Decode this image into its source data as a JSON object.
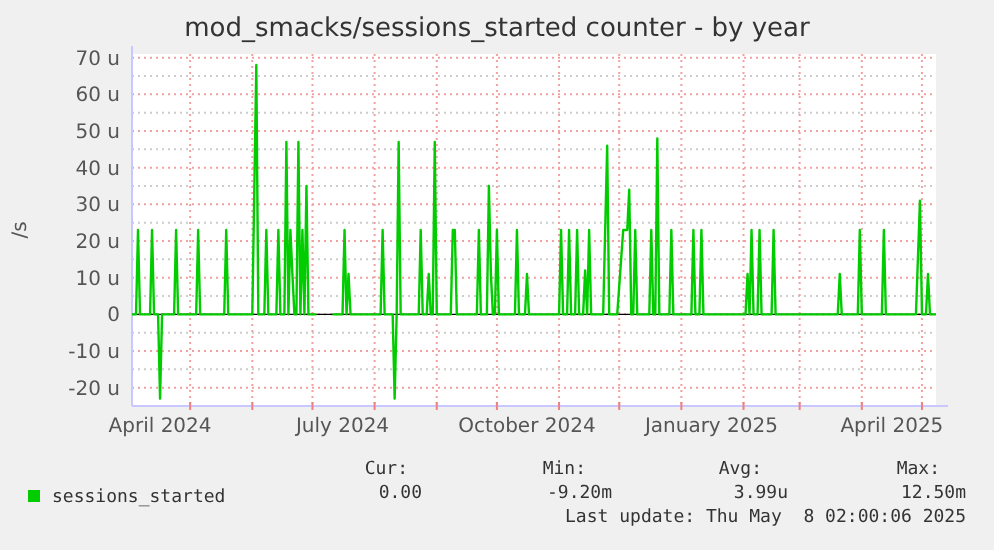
{
  "chart_data": {
    "type": "line",
    "title": "mod_smacks/sessions_started counter - by year",
    "ylabel": "/s",
    "xlim": [
      "2024-04-02",
      "2025-05-08"
    ],
    "xticks": [
      {
        "value": "2024-05-01",
        "label": null
      },
      {
        "value": "2024-06-01",
        "label": null
      },
      {
        "value": "2024-07-01",
        "label": null
      },
      {
        "value": "2024-08-01",
        "label": null
      },
      {
        "value": "2024-09-01",
        "label": null
      },
      {
        "value": "2024-10-01",
        "label": null
      },
      {
        "value": "2024-11-01",
        "label": null
      },
      {
        "value": "2024-12-01",
        "label": null
      },
      {
        "value": "2025-01-01",
        "label": null
      },
      {
        "value": "2025-02-01",
        "label": null
      },
      {
        "value": "2025-03-01",
        "label": null
      },
      {
        "value": "2025-04-01",
        "label": null
      },
      {
        "value": "2025-05-01",
        "label": null
      },
      {
        "value": "2024-04-16",
        "label": "April 2024"
      },
      {
        "value": "2024-07-16",
        "label": "July 2024"
      },
      {
        "value": "2024-10-16",
        "label": "October 2024"
      },
      {
        "value": "2025-01-16",
        "label": "January 2025"
      },
      {
        "value": "2025-04-16",
        "label": "April 2025"
      }
    ],
    "ylim": [
      -25,
      71
    ],
    "yticks": [
      {
        "value": -20,
        "label": "-20 u"
      },
      {
        "value": -10,
        "label": "-10 u"
      },
      0,
      {
        "value": 10,
        "label": "10 u"
      },
      {
        "value": 20,
        "label": "20 u"
      },
      {
        "value": 30,
        "label": "30 u"
      },
      {
        "value": 40,
        "label": "40 u"
      },
      {
        "value": 50,
        "label": "50 u"
      },
      {
        "value": 60,
        "label": "60 u"
      },
      {
        "value": 70,
        "label": "70 u"
      },
      {
        "value": -15,
        "label": null
      },
      {
        "value": -5,
        "label": null
      },
      {
        "value": 5,
        "label": null
      },
      {
        "value": 15,
        "label": null
      },
      {
        "value": 25,
        "label": null
      },
      {
        "value": 35,
        "label": null
      },
      {
        "value": 45,
        "label": null
      },
      {
        "value": 55,
        "label": null
      },
      {
        "value": 65,
        "label": null
      }
    ],
    "grid": true,
    "legend": "bottom",
    "series": [
      {
        "name": "sessions_started",
        "color": "#00cc00",
        "x": [
          "2024-04-02",
          "2024-04-04",
          "2024-04-05",
          "2024-04-06",
          "2024-04-11",
          "2024-04-12",
          "2024-04-13",
          "2024-04-15",
          "2024-04-16",
          "2024-04-17",
          "2024-04-23",
          "2024-04-24",
          "2024-04-25",
          "2024-05-04",
          "2024-05-05",
          "2024-05-06",
          "2024-05-18",
          "2024-05-19",
          "2024-05-20",
          "2024-06-01",
          "2024-06-03",
          "2024-06-04",
          "2024-06-07",
          "2024-06-08",
          "2024-06-09",
          "2024-06-13",
          "2024-06-14",
          "2024-06-15",
          "2024-06-17",
          "2024-06-18",
          "2024-06-19",
          "2024-06-20",
          "2024-06-21",
          "2024-06-22",
          "2024-06-23",
          "2024-06-24",
          "2024-06-25",
          "2024-06-26",
          "2024-06-27",
          "2024-06-28",
          "2024-06-29",
          "2024-07-03",
          "2024-07-07",
          "2024-07-11",
          "2024-07-16",
          "2024-07-17",
          "2024-07-18",
          "2024-07-19",
          "2024-07-20",
          "2024-08-04",
          "2024-08-05",
          "2024-08-06",
          "2024-08-10",
          "2024-08-11",
          "2024-08-12",
          "2024-08-13",
          "2024-08-14",
          "2024-08-23",
          "2024-08-24",
          "2024-08-25",
          "2024-08-27",
          "2024-08-28",
          "2024-08-29",
          "2024-08-30",
          "2024-08-31",
          "2024-09-01",
          "2024-09-08",
          "2024-09-09",
          "2024-09-10",
          "2024-09-11",
          "2024-09-21",
          "2024-09-22",
          "2024-09-23",
          "2024-09-26",
          "2024-09-27",
          "2024-09-28",
          "2024-09-29",
          "2024-09-30",
          "2024-10-01",
          "2024-10-02",
          "2024-10-10",
          "2024-10-11",
          "2024-10-12",
          "2024-10-15",
          "2024-10-16",
          "2024-10-17",
          "2024-11-01",
          "2024-11-02",
          "2024-11-03",
          "2024-11-05",
          "2024-11-06",
          "2024-11-07",
          "2024-11-09",
          "2024-11-10",
          "2024-11-11",
          "2024-11-13",
          "2024-11-14",
          "2024-11-15",
          "2024-11-16",
          "2024-11-17",
          "2024-11-23",
          "2024-11-25",
          "2024-11-26",
          "2024-11-30",
          "2024-12-03",
          "2024-12-05",
          "2024-12-06",
          "2024-12-07",
          "2024-12-08",
          "2024-12-09",
          "2024-12-10",
          "2024-12-16",
          "2024-12-17",
          "2024-12-18",
          "2024-12-19",
          "2024-12-20",
          "2024-12-21",
          "2024-12-26",
          "2024-12-27",
          "2024-12-28",
          "2025-01-06",
          "2025-01-07",
          "2025-01-08",
          "2025-01-10",
          "2025-01-11",
          "2025-01-12",
          "2025-02-02",
          "2025-02-03",
          "2025-02-04",
          "2025-02-05",
          "2025-02-06",
          "2025-02-08",
          "2025-02-09",
          "2025-02-10",
          "2025-02-15",
          "2025-02-16",
          "2025-02-17",
          "2025-03-20",
          "2025-03-21",
          "2025-03-22",
          "2025-03-30",
          "2025-03-31",
          "2025-04-01",
          "2025-04-11",
          "2025-04-12",
          "2025-04-13",
          "2025-04-28",
          "2025-04-30",
          "2025-05-01",
          "2025-05-03",
          "2025-05-04",
          "2025-05-05",
          "2025-05-08"
        ],
        "values": [
          0,
          0,
          23,
          0,
          0,
          23,
          0,
          0,
          -23,
          0,
          0,
          23,
          0,
          0,
          23,
          0,
          0,
          23,
          0,
          0,
          68,
          0,
          0,
          23,
          0,
          0,
          23,
          0,
          0,
          47,
          0,
          23,
          11,
          0,
          0,
          47,
          0,
          23,
          0,
          35,
          0,
          0,
          null,
          0,
          0,
          23,
          0,
          11,
          0,
          0,
          23,
          0,
          0,
          -23,
          0,
          47,
          0,
          0,
          23,
          0,
          0,
          11,
          0,
          0,
          47,
          0,
          0,
          23,
          23,
          0,
          0,
          23,
          0,
          0,
          35,
          11,
          0,
          0,
          23,
          0,
          0,
          23,
          0,
          0,
          11,
          0,
          0,
          23,
          0,
          0,
          23,
          0,
          0,
          23,
          0,
          0,
          12,
          0,
          23,
          0,
          0,
          46,
          0,
          0,
          23,
          23,
          34,
          0,
          0,
          23,
          0,
          0,
          23,
          0,
          0,
          48,
          0,
          0,
          23,
          0,
          0,
          23,
          0,
          0,
          23,
          0,
          0,
          11,
          0,
          23,
          0,
          0,
          23,
          0,
          0,
          23,
          0,
          0,
          11,
          0,
          0,
          23,
          0,
          0,
          23,
          0,
          0,
          31,
          0,
          0,
          11,
          0,
          0
        ]
      }
    ],
    "annotations": [
      "Cur:",
      "Min:",
      "Avg:",
      "Max:",
      "0.00",
      "-9.20m",
      "3.99u",
      "12.50m",
      "Last update: Thu May  8 02:00:06 2025"
    ]
  }
}
